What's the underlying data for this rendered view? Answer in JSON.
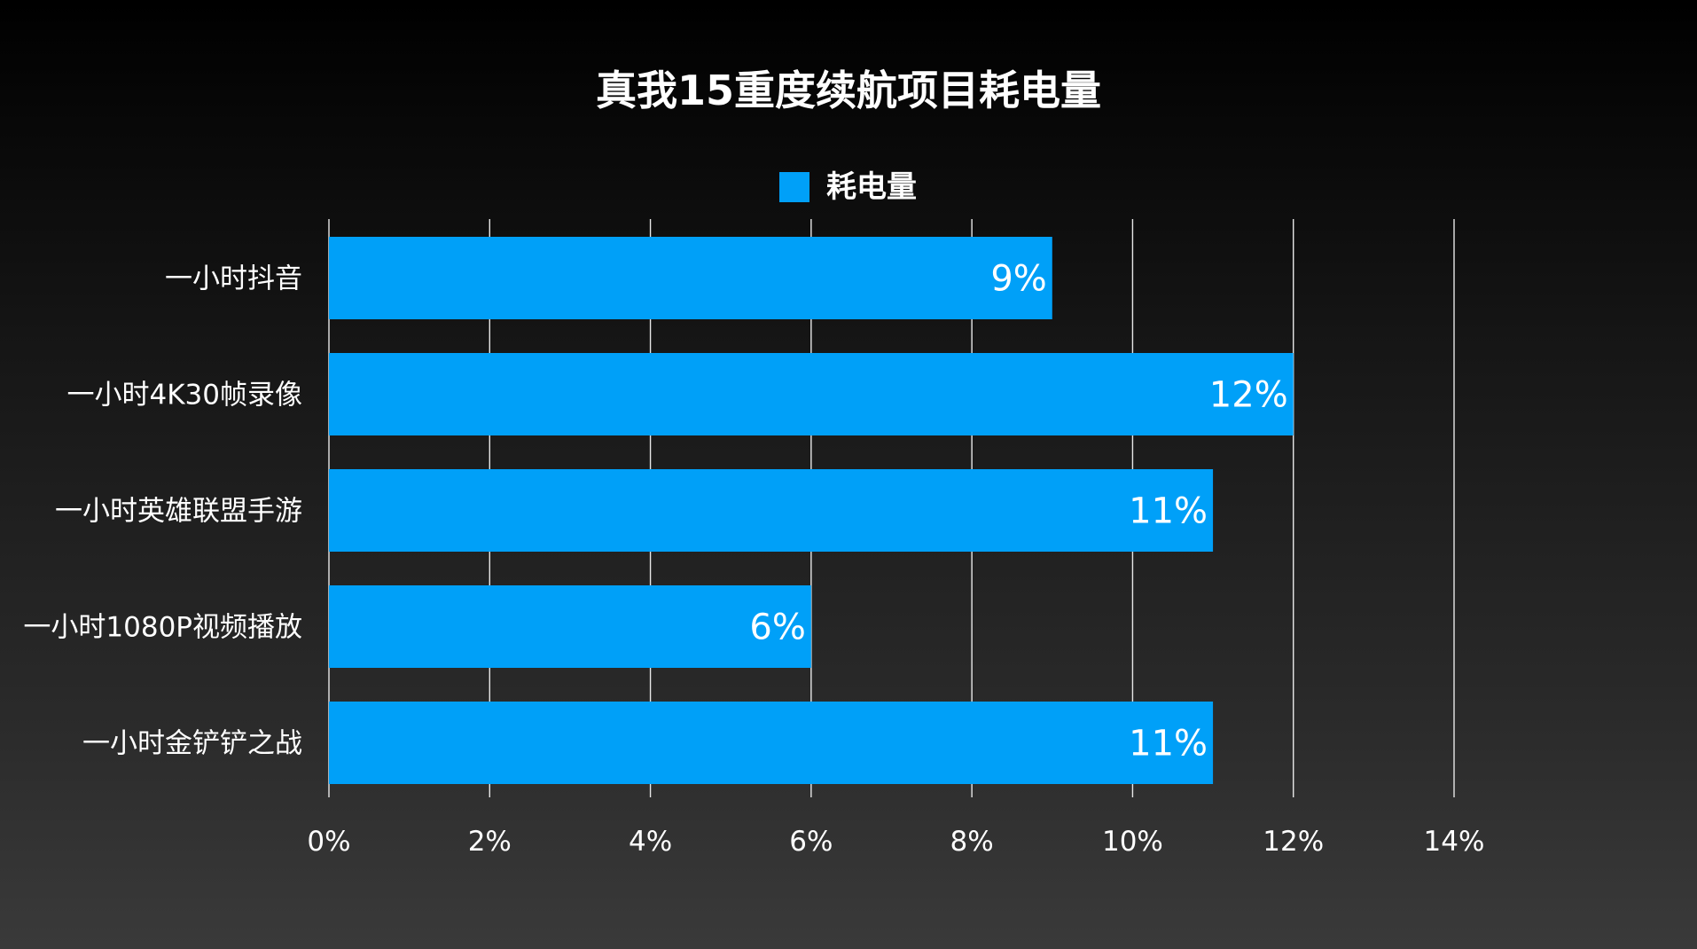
{
  "chart_data": {
    "type": "bar",
    "orientation": "horizontal",
    "title": "真我15重度续航项目耗电量",
    "legend": {
      "position": "top",
      "entries": [
        "耗电量"
      ]
    },
    "categories": [
      "一小时抖音",
      "一小时4K30帧录像",
      "一小时英雄联盟手游",
      "一小时1080P视频播放",
      "一小时金铲铲之战"
    ],
    "series": [
      {
        "name": "耗电量",
        "values": [
          9,
          12,
          11,
          6,
          11
        ],
        "labels": [
          "9%",
          "12%",
          "11%",
          "6%",
          "11%"
        ],
        "color": "#00a0f8"
      }
    ],
    "x_ticks": [
      "0%",
      "2%",
      "4%",
      "6%",
      "8%",
      "10%",
      "12%",
      "14%"
    ],
    "xlim": [
      0,
      14
    ],
    "xlabel": "",
    "ylabel": "",
    "grid": "vertical",
    "colors": {
      "bar": "#00a0f8",
      "grid": "#e8e8e8",
      "text": "#ffffff"
    }
  }
}
